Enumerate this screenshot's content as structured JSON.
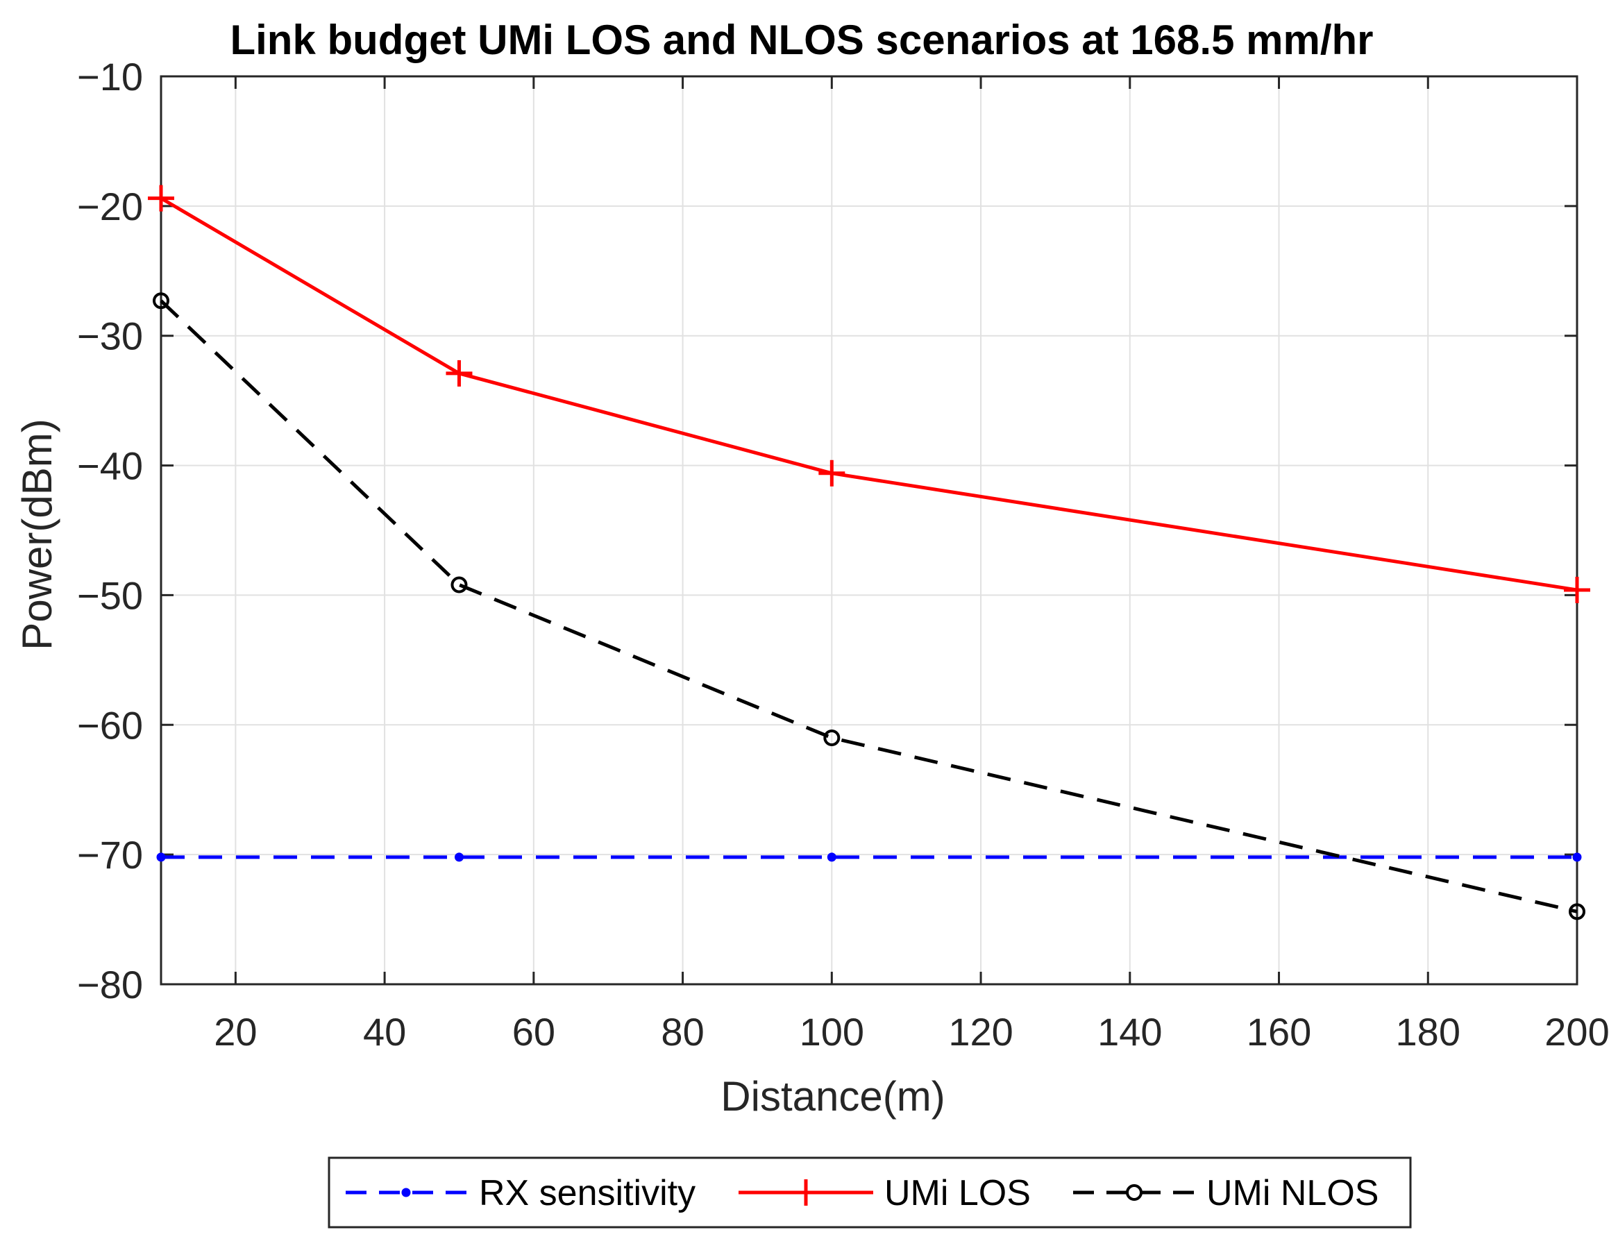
{
  "chart_data": {
    "type": "line",
    "title": "Link budget UMi LOS and NLOS scenarios at 168.5 mm/hr",
    "xlabel": "Distance(m)",
    "ylabel": "Power(dBm)",
    "xlim": [
      10,
      200
    ],
    "ylim": [
      -80,
      -10
    ],
    "xticks": [
      20,
      40,
      60,
      80,
      100,
      120,
      140,
      160,
      180,
      200
    ],
    "yticks": [
      -10,
      -20,
      -30,
      -40,
      -50,
      -60,
      -70,
      -80
    ],
    "xtick_labels": [
      "20",
      "40",
      "60",
      "80",
      "100",
      "120",
      "140",
      "160",
      "180",
      "200"
    ],
    "ytick_labels": [
      "−10",
      "−20",
      "−30",
      "−40",
      "−50",
      "−60",
      "−70",
      "−80"
    ],
    "grid": true,
    "legend_position": "bottom-outside",
    "series": [
      {
        "name": "RX sensitivity",
        "x": [
          10,
          50,
          100,
          200
        ],
        "values": [
          -70.2,
          -70.2,
          -70.2,
          -70.2
        ],
        "color": "#0000ff",
        "line_style": "dashed",
        "marker": "dot"
      },
      {
        "name": "UMi LOS",
        "x": [
          10,
          50,
          100,
          200
        ],
        "values": [
          -19.4,
          -32.9,
          -40.6,
          -49.6
        ],
        "color": "#ff0000",
        "line_style": "solid",
        "marker": "plus"
      },
      {
        "name": "UMi NLOS",
        "x": [
          10,
          50,
          100,
          200
        ],
        "values": [
          -27.3,
          -49.2,
          -61.0,
          -74.4
        ],
        "color": "#000000",
        "line_style": "dashed",
        "marker": "circle"
      }
    ]
  }
}
